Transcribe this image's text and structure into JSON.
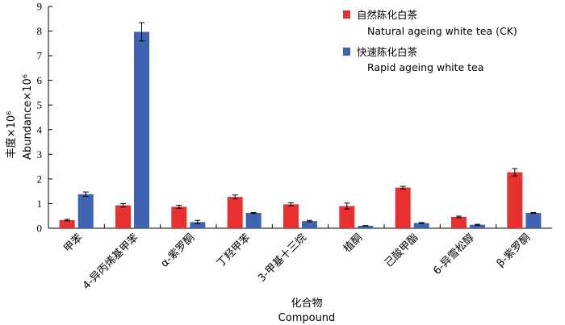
{
  "chart_data": {
    "type": "bar",
    "ylim": [
      0,
      9
    ],
    "yticks": [
      "0",
      "1",
      "2",
      "3",
      "4",
      "5",
      "6",
      "7",
      "8",
      "9"
    ],
    "ylabel_cn": "丰度×10⁶",
    "ylabel_en": "Abundance×10⁶",
    "xlabel_cn": "化合物",
    "xlabel_en": "Compound",
    "categories": [
      "甲苯",
      "4-异丙烯基甲苯",
      "α-紫罗酮",
      "丁羟甲苯",
      "3-甲基十三烷",
      "植酮",
      "己酸甲酯",
      "6-异雪松醇",
      "β-紫罗酮"
    ],
    "series": [
      {
        "name_cn": "自然陈化白茶",
        "name_en": "Natural ageing white tea (CK)",
        "color": "#e8312f",
        "values": [
          0.33,
          0.93,
          0.87,
          1.27,
          0.97,
          0.9,
          1.65,
          0.46,
          2.27
        ],
        "errors": [
          0.03,
          0.07,
          0.06,
          0.08,
          0.06,
          0.12,
          0.05,
          0.03,
          0.15
        ]
      },
      {
        "name_cn": "快速陈化白茶",
        "name_en": "Rapid ageing white tea",
        "color": "#3f63b1",
        "values": [
          1.38,
          7.97,
          0.25,
          0.62,
          0.29,
          0.1,
          0.21,
          0.14,
          0.62
        ],
        "errors": [
          0.09,
          0.37,
          0.07,
          0.02,
          0.03,
          0.01,
          0.02,
          0.02,
          0.02
        ]
      }
    ],
    "legend_position": "top-right",
    "grid": false
  }
}
